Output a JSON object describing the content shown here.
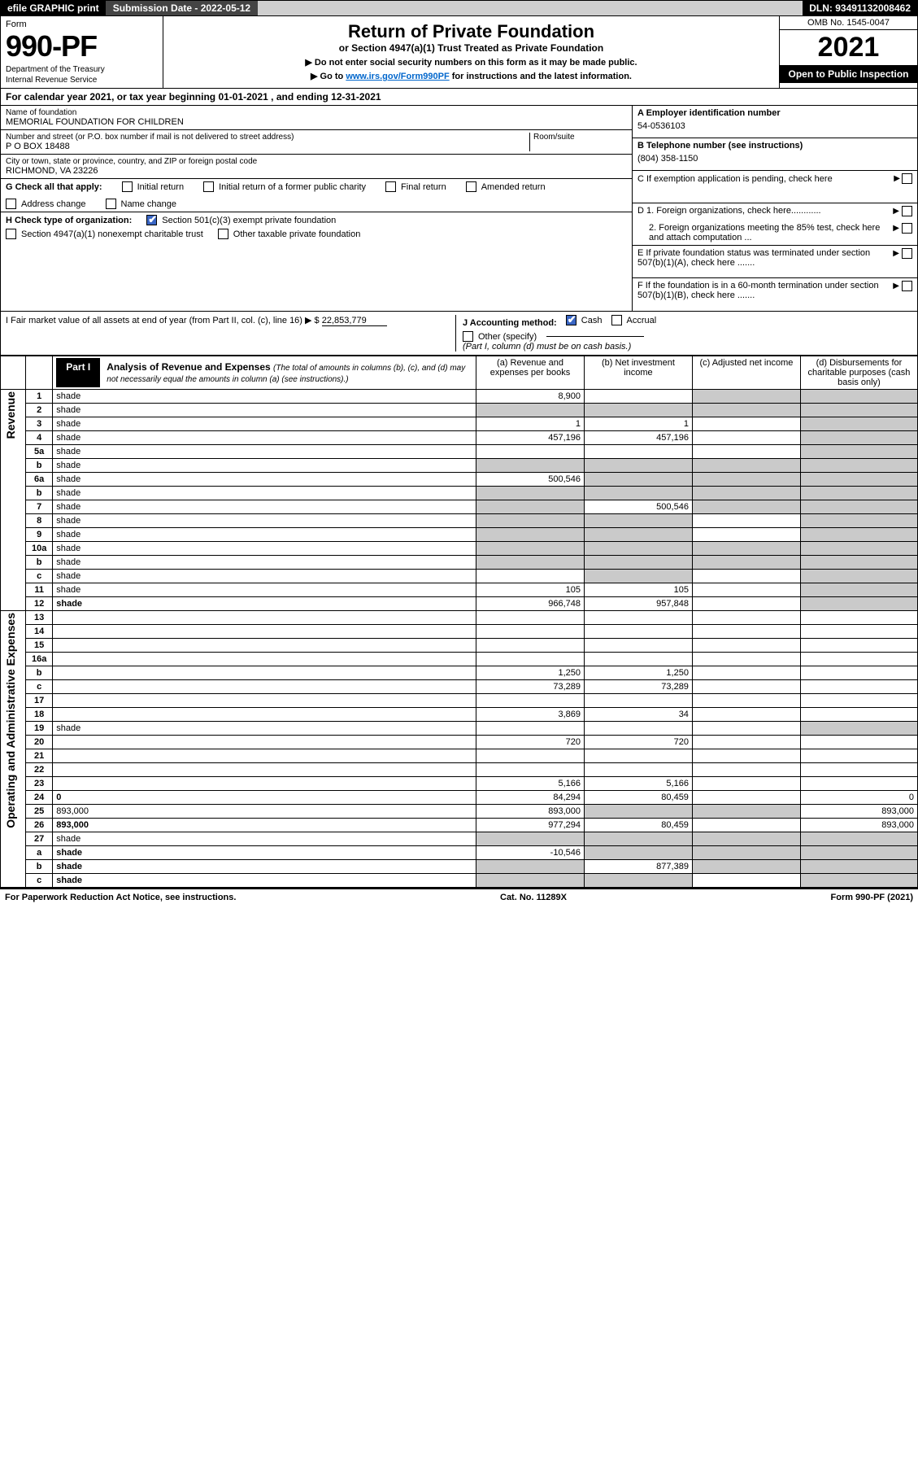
{
  "topbar": {
    "efile": "efile GRAPHIC print",
    "submission": "Submission Date - 2022-05-12",
    "dln": "DLN: 93491132008462"
  },
  "header": {
    "form_label": "Form",
    "form_num": "990-PF",
    "dept1": "Department of the Treasury",
    "dept2": "Internal Revenue Service",
    "title": "Return of Private Foundation",
    "subtitle": "or Section 4947(a)(1) Trust Treated as Private Foundation",
    "instr1": "▶ Do not enter social security numbers on this form as it may be made public.",
    "instr2_pre": "▶ Go to ",
    "instr2_link": "www.irs.gov/Form990PF",
    "instr2_post": " for instructions and the latest information.",
    "omb": "OMB No. 1545-0047",
    "year": "2021",
    "open": "Open to Public Inspection"
  },
  "calendar": "For calendar year 2021, or tax year beginning 01-01-2021           , and ending 12-31-2021",
  "name_block": {
    "label": "Name of foundation",
    "value": "MEMORIAL FOUNDATION FOR CHILDREN",
    "addr_label": "Number and street (or P.O. box number if mail is not delivered to street address)",
    "room_label": "Room/suite",
    "addr": "P O BOX 18488",
    "city_label": "City or town, state or province, country, and ZIP or foreign postal code",
    "city": "RICHMOND, VA  23226"
  },
  "right_top": {
    "a_label": "A Employer identification number",
    "a_val": "54-0536103",
    "b_label": "B Telephone number (see instructions)",
    "b_val": "(804) 358-1150",
    "c_label": "C If exemption application is pending, check here"
  },
  "g_block": {
    "label": "G Check all that apply:",
    "opts": [
      "Initial return",
      "Initial return of a former public charity",
      "Final return",
      "Amended return",
      "Address change",
      "Name change"
    ]
  },
  "h_block": {
    "label": "H Check type of organization:",
    "o1": "Section 501(c)(3) exempt private foundation",
    "o2": "Section 4947(a)(1) nonexempt charitable trust",
    "o3": "Other taxable private foundation"
  },
  "i_block": {
    "label": "I Fair market value of all assets at end of year (from Part II, col. (c), line 16) ▶ $",
    "value": "22,853,779"
  },
  "j_block": {
    "label": "J Accounting method:",
    "o1": "Cash",
    "o2": "Accrual",
    "o3": "Other (specify)",
    "note": "(Part I, column (d) must be on cash basis.)"
  },
  "d_block": {
    "d1": "D 1. Foreign organizations, check here............",
    "d2": "2. Foreign organizations meeting the 85% test, check here and attach computation ...",
    "e": "E  If private foundation status was terminated under section 507(b)(1)(A), check here .......",
    "f": "F  If the foundation is in a 60-month termination under section 507(b)(1)(B), check here ......."
  },
  "part1": {
    "tab": "Part I",
    "title": "Analysis of Revenue and Expenses",
    "sub": "(The total of amounts in columns (b), (c), and (d) may not necessarily equal the amounts in column (a) (see instructions).)",
    "cols": {
      "a": "(a) Revenue and expenses per books",
      "b": "(b) Net investment income",
      "c": "(c) Adjusted net income",
      "d": "(d) Disbursements for charitable purposes (cash basis only)"
    }
  },
  "side": {
    "rev": "Revenue",
    "exp": "Operating and Administrative Expenses"
  },
  "rows": [
    {
      "n": "1",
      "d": "shade",
      "a": "8,900",
      "b": "",
      "c": "shade"
    },
    {
      "n": "2",
      "d": "shade",
      "a": "shade",
      "b": "shade",
      "c": "shade"
    },
    {
      "n": "3",
      "d": "shade",
      "a": "1",
      "b": "1",
      "c": ""
    },
    {
      "n": "4",
      "d": "shade",
      "a": "457,196",
      "b": "457,196",
      "c": ""
    },
    {
      "n": "5a",
      "d": "shade",
      "a": "",
      "b": "",
      "c": ""
    },
    {
      "n": "b",
      "d": "shade",
      "a": "shade",
      "b": "shade",
      "c": "shade"
    },
    {
      "n": "6a",
      "d": "shade",
      "a": "500,546",
      "b": "shade",
      "c": "shade"
    },
    {
      "n": "b",
      "d": "shade",
      "a": "shade",
      "b": "shade",
      "c": "shade"
    },
    {
      "n": "7",
      "d": "shade",
      "a": "shade",
      "b": "500,546",
      "c": "shade"
    },
    {
      "n": "8",
      "d": "shade",
      "a": "shade",
      "b": "shade",
      "c": ""
    },
    {
      "n": "9",
      "d": "shade",
      "a": "shade",
      "b": "shade",
      "c": ""
    },
    {
      "n": "10a",
      "d": "shade",
      "a": "shade",
      "b": "shade",
      "c": "shade"
    },
    {
      "n": "b",
      "d": "shade",
      "a": "shade",
      "b": "shade",
      "c": "shade"
    },
    {
      "n": "c",
      "d": "shade",
      "a": "",
      "b": "shade",
      "c": ""
    },
    {
      "n": "11",
      "d": "shade",
      "a": "105",
      "b": "105",
      "c": ""
    },
    {
      "n": "12",
      "d": "shade",
      "a": "966,748",
      "b": "957,848",
      "c": "",
      "bold": true
    },
    {
      "n": "13",
      "d": "",
      "a": "",
      "b": "",
      "c": ""
    },
    {
      "n": "14",
      "d": "",
      "a": "",
      "b": "",
      "c": ""
    },
    {
      "n": "15",
      "d": "",
      "a": "",
      "b": "",
      "c": ""
    },
    {
      "n": "16a",
      "d": "",
      "a": "",
      "b": "",
      "c": ""
    },
    {
      "n": "b",
      "d": "",
      "a": "1,250",
      "b": "1,250",
      "c": ""
    },
    {
      "n": "c",
      "d": "",
      "a": "73,289",
      "b": "73,289",
      "c": ""
    },
    {
      "n": "17",
      "d": "",
      "a": "",
      "b": "",
      "c": ""
    },
    {
      "n": "18",
      "d": "",
      "a": "3,869",
      "b": "34",
      "c": ""
    },
    {
      "n": "19",
      "d": "shade",
      "a": "",
      "b": "",
      "c": ""
    },
    {
      "n": "20",
      "d": "",
      "a": "720",
      "b": "720",
      "c": ""
    },
    {
      "n": "21",
      "d": "",
      "a": "",
      "b": "",
      "c": ""
    },
    {
      "n": "22",
      "d": "",
      "a": "",
      "b": "",
      "c": ""
    },
    {
      "n": "23",
      "d": "",
      "a": "5,166",
      "b": "5,166",
      "c": ""
    },
    {
      "n": "24",
      "d": "0",
      "a": "84,294",
      "b": "80,459",
      "c": "",
      "bold": true
    },
    {
      "n": "25",
      "d": "893,000",
      "a": "893,000",
      "b": "shade",
      "c": "shade"
    },
    {
      "n": "26",
      "d": "893,000",
      "a": "977,294",
      "b": "80,459",
      "c": "",
      "bold": true
    },
    {
      "n": "27",
      "d": "shade",
      "a": "shade",
      "b": "shade",
      "c": "shade"
    },
    {
      "n": "a",
      "d": "shade",
      "a": "-10,546",
      "b": "shade",
      "c": "shade",
      "bold": true
    },
    {
      "n": "b",
      "d": "shade",
      "a": "shade",
      "b": "877,389",
      "c": "shade",
      "bold": true
    },
    {
      "n": "c",
      "d": "shade",
      "a": "shade",
      "b": "shade",
      "c": "",
      "bold": true
    }
  ],
  "footer": {
    "left": "For Paperwork Reduction Act Notice, see instructions.",
    "center": "Cat. No. 11289X",
    "right": "Form 990-PF (2021)"
  }
}
